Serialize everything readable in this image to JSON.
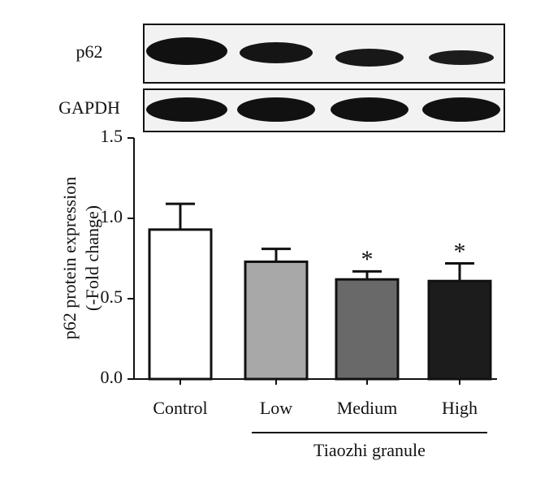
{
  "chart_data": {
    "type": "bar",
    "blot_labels": [
      "p62",
      "GAPDH"
    ],
    "y_label": [
      "p62 protein expression",
      "(-Fold change)"
    ],
    "categories": [
      "Control",
      "Low",
      "Medium",
      "High"
    ],
    "group_label": "Tiaozhi granule",
    "values": [
      0.93,
      0.73,
      0.62,
      0.61
    ],
    "errors": [
      0.16,
      0.08,
      0.05,
      0.11
    ],
    "significance": [
      null,
      null,
      "*",
      "*"
    ],
    "colors": [
      "#ffffff",
      "#a8a8a8",
      "#696969",
      "#1c1c1c"
    ],
    "ylim": [
      0,
      1.5
    ],
    "yticks": [
      {
        "value": 0,
        "label": "0.0"
      },
      {
        "value": 0.5,
        "label": "0.5"
      },
      {
        "value": 1,
        "label": "1.0"
      },
      {
        "value": 1.5,
        "label": "1.5"
      }
    ]
  }
}
